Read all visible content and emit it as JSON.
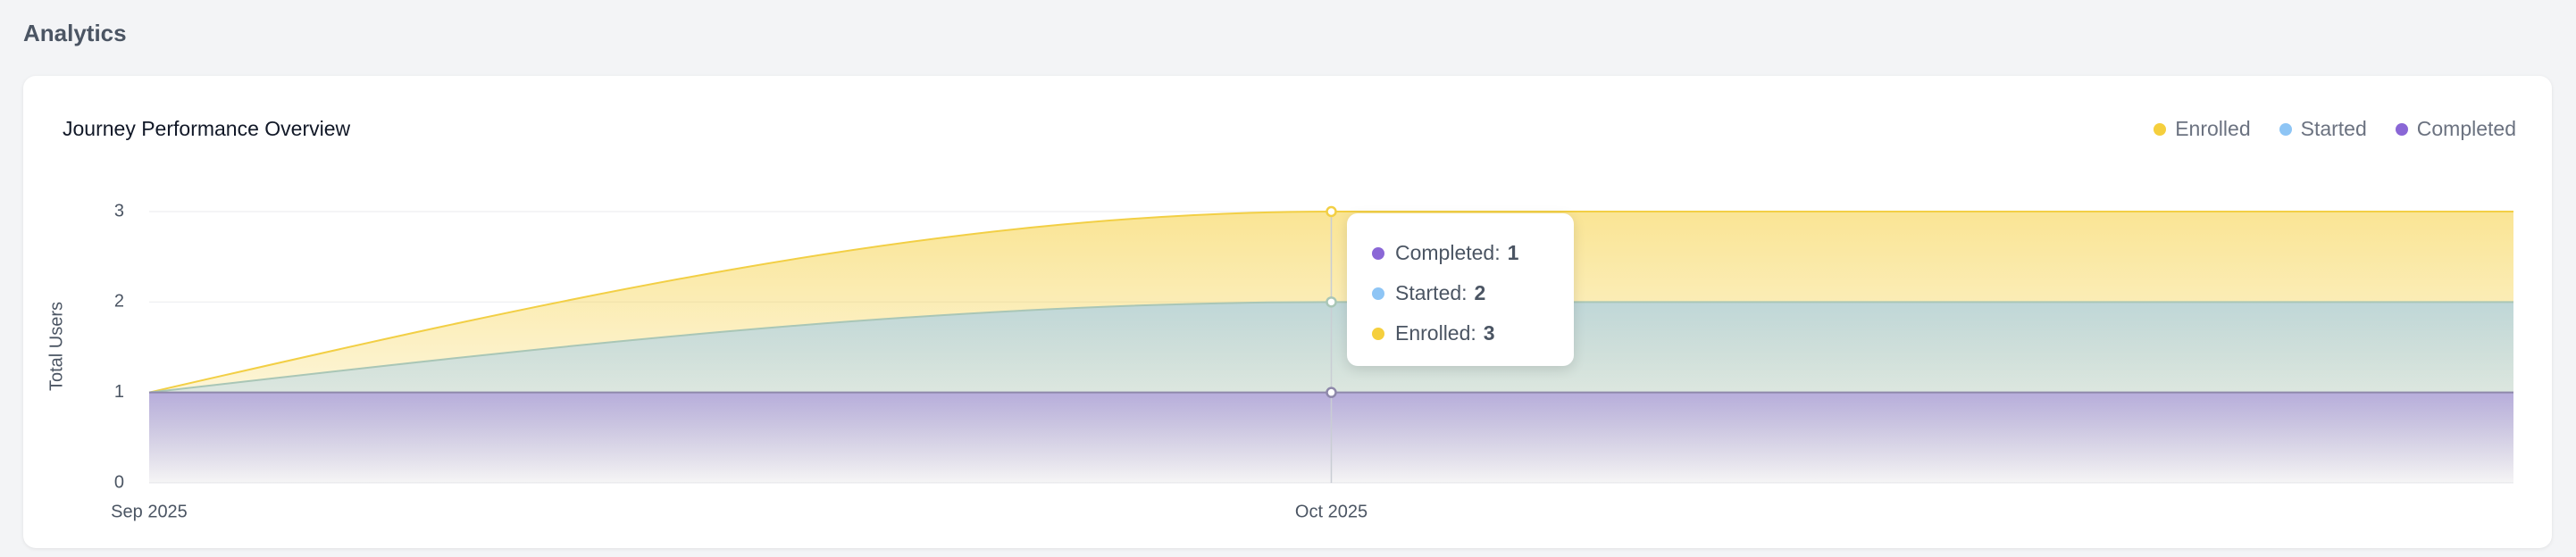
{
  "header": {
    "title": "Analytics"
  },
  "chart_data": {
    "type": "area",
    "title": "Journey Performance Overview",
    "y_label": "Total Users",
    "categories": [
      "Sep 2025",
      "Oct 2025",
      null
    ],
    "series": [
      {
        "name": "Enrolled",
        "color": "#f5cf3d",
        "values": [
          1,
          3,
          3
        ]
      },
      {
        "name": "Started",
        "color": "#8ec5f5",
        "values": [
          1,
          2,
          2
        ]
      },
      {
        "name": "Completed",
        "color": "#8a67d6",
        "values": [
          1,
          1,
          1
        ]
      }
    ],
    "ylim": [
      0,
      3
    ],
    "yticks": [
      0,
      1,
      2,
      3
    ],
    "grid": true,
    "legend": "top-right",
    "tooltip_index": 1
  }
}
